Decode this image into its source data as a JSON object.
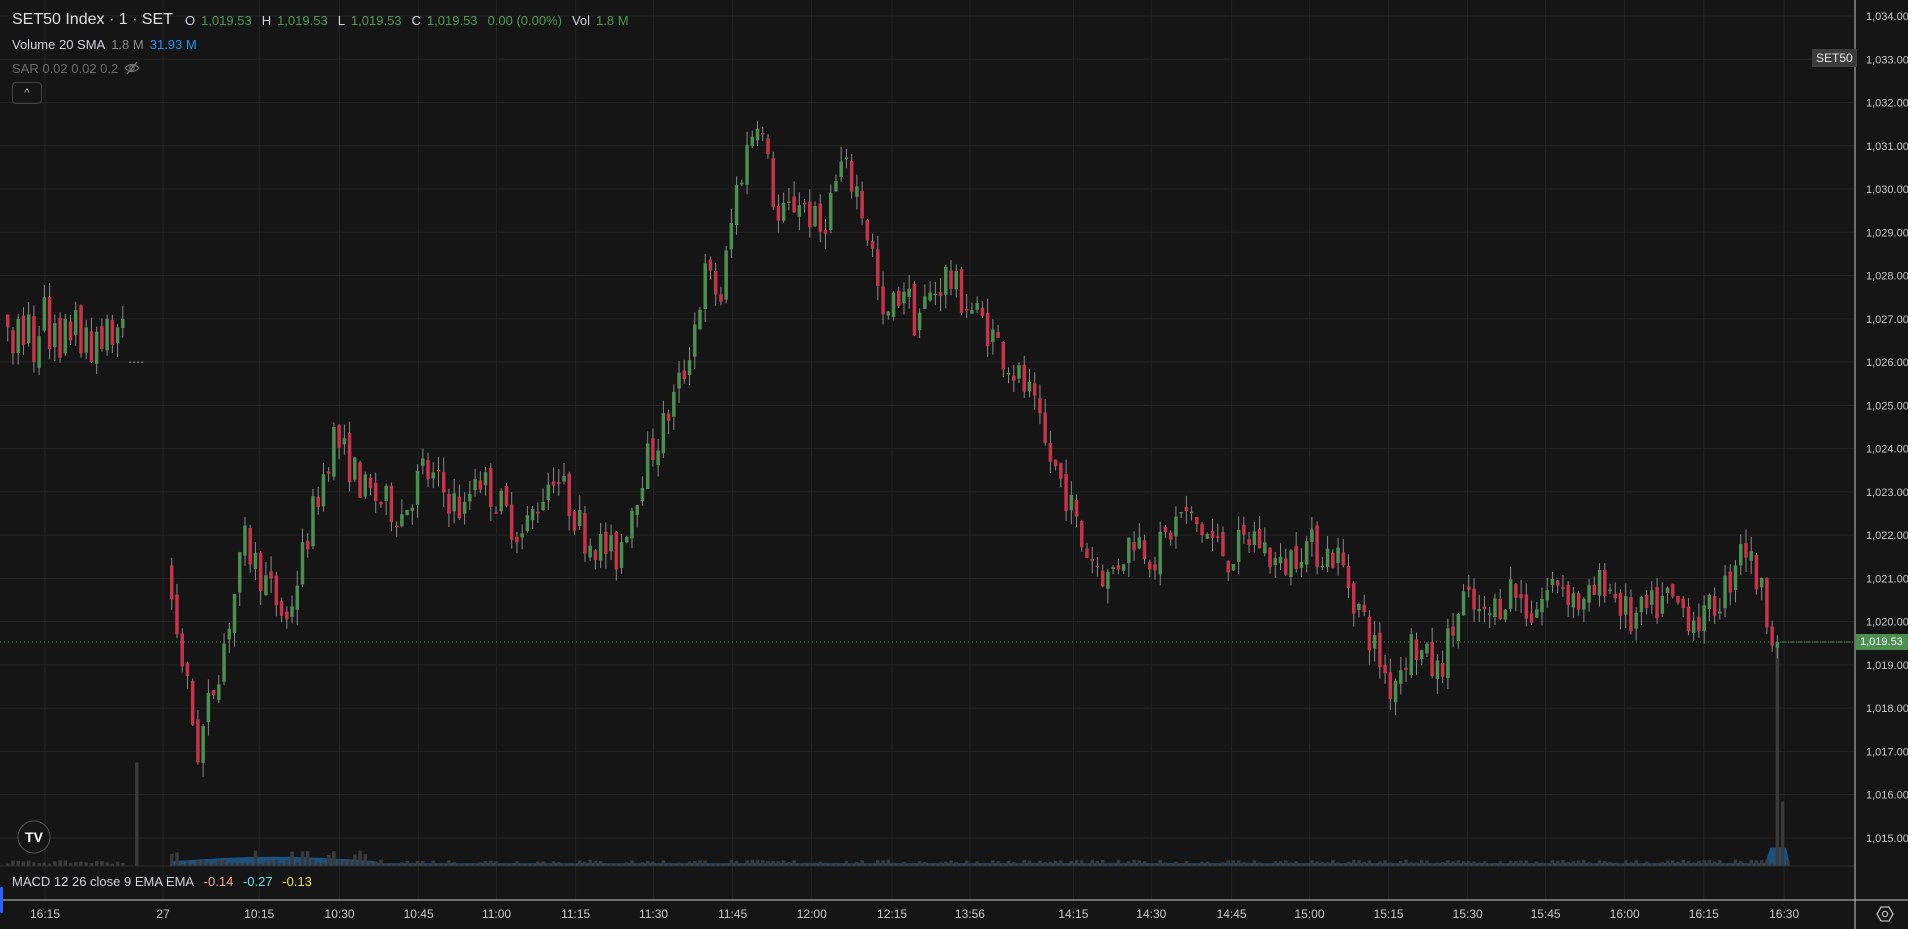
{
  "legend": {
    "title": "SET50 Index · 1 · SET",
    "o_label": "O",
    "o": "1,019.53",
    "h_label": "H",
    "h": "1,019.53",
    "l_label": "L",
    "l": "1,019.53",
    "c_label": "C",
    "c": "1,019.53",
    "change": "0.00 (0.00%)",
    "vol_label": "Vol",
    "vol": "1.8 M",
    "volume_sma_label": "Volume 20 SMA",
    "volume_value": "1.8 M",
    "volume_sma_value": "31.93 M",
    "sar_label": "SAR 0.02 0.02 0.2",
    "collapse_icon": "chevron-up-icon",
    "hidden_icon": "eye-off-icon"
  },
  "symbol_tag": "SET50",
  "last_price_tag": "1,019.53",
  "macd": {
    "label": "MACD 12 26 close 9 EMA EMA",
    "macd": "-0.14",
    "signal": "-0.27",
    "histogram": "-0.13"
  },
  "colors": {
    "up": "#4a8f4f",
    "down": "#c8334a",
    "wick": "#8a8a8a",
    "volume_sma": "#1d5c8f",
    "macd": "#f0a0a0",
    "signal": "#5ee0e8",
    "hist": "#e8e04a"
  },
  "price_axis": [
    "1,034.00",
    "1,033.00",
    "1,032.00",
    "1,031.00",
    "1,030.00",
    "1,029.00",
    "1,028.00",
    "1,027.00",
    "1,026.00",
    "1,025.00",
    "1,024.00",
    "1,023.00",
    "1,022.00",
    "1,021.00",
    "1,020.00",
    "1,019.00",
    "1,018.00",
    "1,017.00",
    "1,016.00",
    "1,015.00"
  ],
  "time_axis": [
    "16:15",
    "27",
    "10:15",
    "10:30",
    "10:45",
    "11:00",
    "11:15",
    "11:30",
    "11:45",
    "12:00",
    "12:15",
    "13:56",
    "14:15",
    "14:30",
    "14:45",
    "15:00",
    "15:15",
    "15:30",
    "15:45",
    "16:00",
    "16:15",
    "16:30"
  ],
  "chart_data": {
    "type": "candlestick",
    "ylim": [
      1014.6,
      1034.4
    ],
    "previous_close": 1026.0,
    "last_price": 1019.53,
    "previous_session_closes": [
      1026.8,
      1026.2,
      1027.0,
      1026.4,
      1027.1,
      1026.0,
      1026.6,
      1027.5,
      1026.3,
      1026.9,
      1026.1,
      1027.0,
      1026.5,
      1027.2,
      1026.2,
      1026.8,
      1026.0,
      1026.7,
      1026.3,
      1027.0,
      1026.4,
      1026.8,
      1027.0
    ],
    "session_close_path": [
      [
        "09:58",
        1020.5
      ],
      [
        "10:03",
        1017.0
      ],
      [
        "10:08",
        1019.5
      ],
      [
        "10:12",
        1021.8
      ],
      [
        "10:20",
        1020.0
      ],
      [
        "10:25",
        1022.5
      ],
      [
        "10:29",
        1024.3
      ],
      [
        "10:35",
        1023.0
      ],
      [
        "10:42",
        1022.5
      ],
      [
        "10:46",
        1023.5
      ],
      [
        "10:54",
        1022.5
      ],
      [
        "10:56",
        1023.5
      ],
      [
        "11:05",
        1022.0
      ],
      [
        "11:11",
        1023.5
      ],
      [
        "11:17",
        1022.0
      ],
      [
        "11:23",
        1021.5
      ],
      [
        "11:28",
        1023.5
      ],
      [
        "11:32",
        1024.5
      ],
      [
        "11:36",
        1025.8
      ],
      [
        "11:40",
        1028.0
      ],
      [
        "11:43",
        1027.5
      ],
      [
        "11:46",
        1030.0
      ],
      [
        "11:50",
        1031.8
      ],
      [
        "11:52",
        1030.5
      ],
      [
        "11:54",
        1029.2
      ],
      [
        "11:58",
        1029.8
      ],
      [
        "12:02",
        1029.0
      ],
      [
        "12:06",
        1030.5
      ],
      [
        "12:09",
        1030.0
      ],
      [
        "12:12",
        1028.5
      ],
      [
        "12:14",
        1026.8
      ],
      [
        "12:18",
        1027.8
      ],
      [
        "12:20",
        1027.0
      ],
      [
        "12:26",
        1028.0
      ],
      [
        "12:29",
        1027.5
      ],
      [
        "13:59",
        1026.8
      ],
      [
        "14:03",
        1026.0
      ],
      [
        "14:07",
        1025.2
      ],
      [
        "14:10",
        1024.0
      ],
      [
        "14:14",
        1023.0
      ],
      [
        "14:17",
        1021.8
      ],
      [
        "14:22",
        1021.0
      ],
      [
        "14:27",
        1022.0
      ],
      [
        "14:31",
        1021.5
      ],
      [
        "14:36",
        1022.5
      ],
      [
        "14:41",
        1022.0
      ],
      [
        "14:45",
        1021.5
      ],
      [
        "14:50",
        1022.0
      ],
      [
        "14:55",
        1021.2
      ],
      [
        "14:59",
        1021.8
      ],
      [
        "15:06",
        1021.5
      ],
      [
        "15:11",
        1020.0
      ],
      [
        "15:16",
        1018.5
      ],
      [
        "15:20",
        1019.5
      ],
      [
        "15:25",
        1018.8
      ],
      [
        "15:30",
        1020.5
      ],
      [
        "15:34",
        1020.0
      ],
      [
        "15:39",
        1020.8
      ],
      [
        "15:43",
        1020.2
      ],
      [
        "15:48",
        1021.0
      ],
      [
        "15:53",
        1020.3
      ],
      [
        "15:57",
        1021.0
      ],
      [
        "16:02",
        1020.0
      ],
      [
        "16:09",
        1020.5
      ],
      [
        "16:16",
        1020.0
      ],
      [
        "16:21",
        1021.0
      ],
      [
        "16:23",
        1022.0
      ],
      [
        "16:26",
        1021.0
      ],
      [
        "16:30",
        1019.53
      ]
    ],
    "volume_spikes": [
      [
        "prev 16:30",
        0.45
      ],
      [
        "16:30",
        0.95
      ],
      [
        "16:31",
        0.28
      ]
    ]
  }
}
